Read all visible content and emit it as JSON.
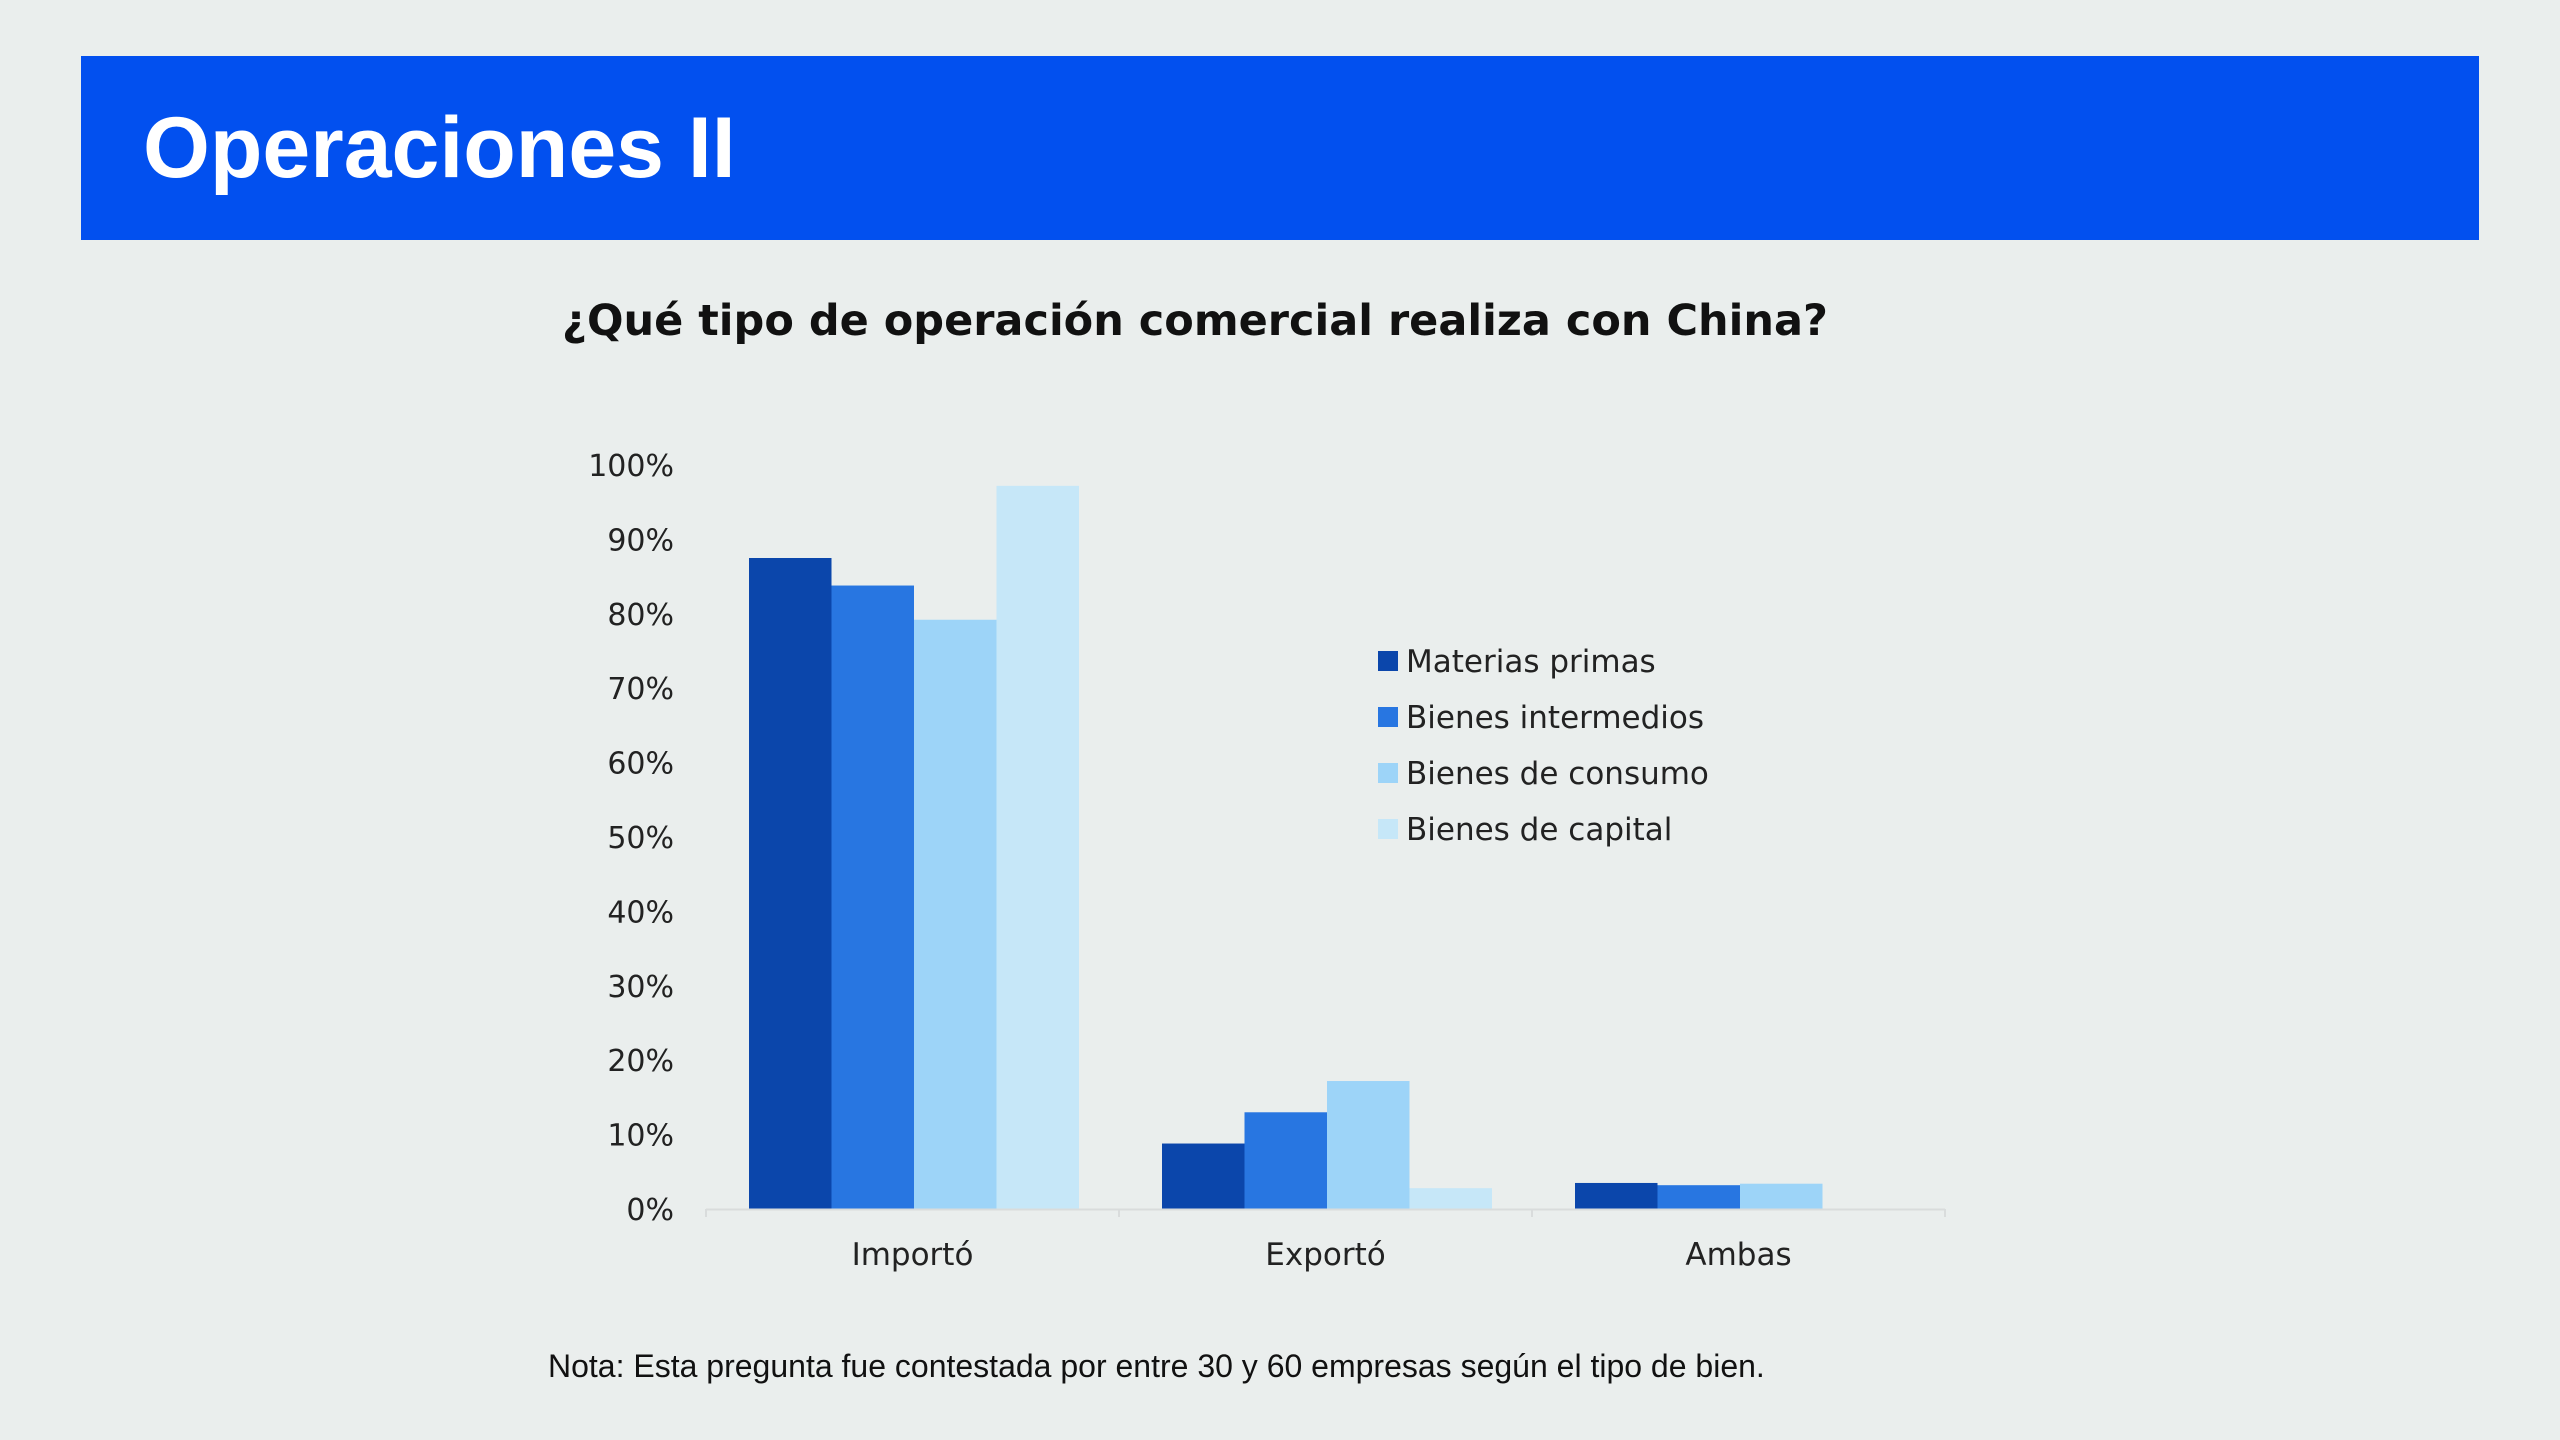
{
  "slide": {
    "title": "Operaciones II",
    "header_color": "#0250ef",
    "footnote": "Nota: Esta pregunta fue contestada por entre 30 y 60 empresas según el tipo de bien."
  },
  "chart_data": {
    "type": "bar",
    "title": "¿Qué tipo de operación comercial realiza con China?",
    "xlabel": "",
    "ylabel": "",
    "categories": [
      "Importó",
      "Exportó",
      "Ambas"
    ],
    "ylim": [
      0,
      100
    ],
    "yticks": [
      0,
      10,
      20,
      30,
      40,
      50,
      60,
      70,
      80,
      90,
      100
    ],
    "y_tick_format": "percent",
    "grid": false,
    "legend_position": "right",
    "series": [
      {
        "name": "Materias primas",
        "color": "#0b46ab",
        "values": [
          87.5,
          8.8,
          3.5
        ]
      },
      {
        "name": "Bienes intermedios",
        "color": "#2876e1",
        "values": [
          83.8,
          13.0,
          3.2
        ]
      },
      {
        "name": "Bienes de consumo",
        "color": "#9dd4f8",
        "values": [
          79.2,
          17.2,
          3.4
        ]
      },
      {
        "name": "Bienes de capital",
        "color": "#c6e7f8",
        "values": [
          97.2,
          2.8,
          0
        ]
      }
    ]
  }
}
